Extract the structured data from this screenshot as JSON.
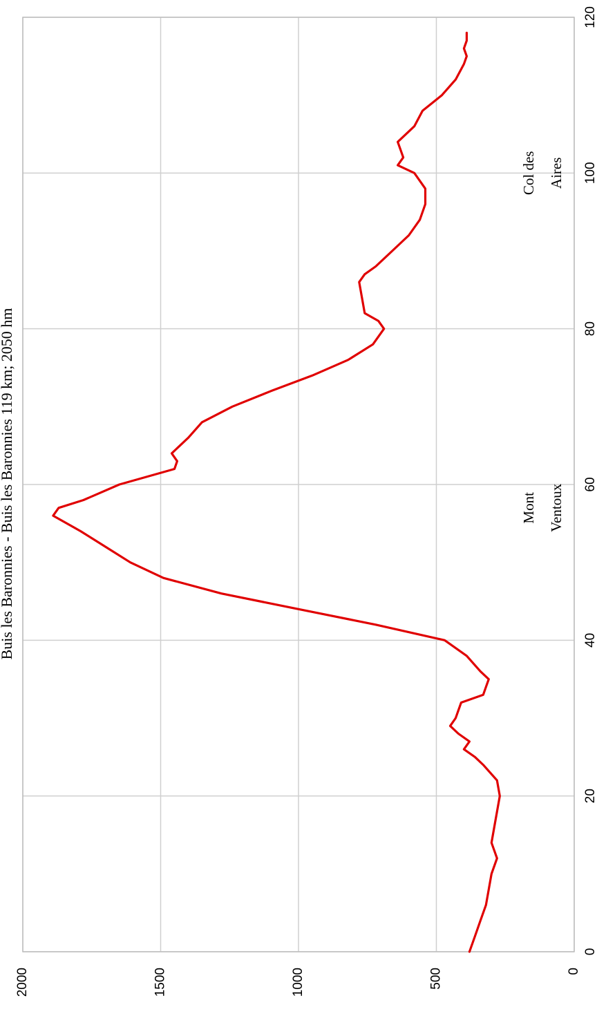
{
  "chart_data": {
    "type": "line",
    "title": "Buis les Baronnies - Buis les Baronnies 119 km; 2050 hm",
    "xlabel": "",
    "ylabel": "",
    "xlim": [
      0,
      120
    ],
    "ylim": [
      0,
      2000
    ],
    "xticks": [
      "0",
      "20",
      "40",
      "60",
      "80",
      "100",
      "120"
    ],
    "yticks": [
      "0",
      "500",
      "1000",
      "1500",
      "2000"
    ],
    "grid": true,
    "rotated": "90deg-ccw",
    "line_color": "#e00000",
    "annotations": [
      {
        "lines": [
          "Mont",
          "Ventoux"
        ],
        "x": 57,
        "y": 110
      },
      {
        "lines": [
          "Col des",
          "Aires"
        ],
        "x": 100,
        "y": 110
      }
    ],
    "series": [
      {
        "x": [
          0,
          2,
          4,
          6,
          8,
          10,
          12,
          13,
          14,
          16,
          18,
          20,
          22,
          24,
          25,
          26,
          27,
          28,
          29,
          30,
          31,
          32,
          33,
          34,
          35,
          36,
          38,
          40,
          42,
          44,
          46,
          48,
          50,
          52,
          54,
          56,
          57,
          58,
          60,
          62,
          63,
          64,
          65,
          66,
          68,
          70,
          72,
          74,
          76,
          78,
          80,
          81,
          82,
          84,
          86,
          87,
          88,
          90,
          92,
          94,
          96,
          98,
          100,
          101,
          102,
          103,
          104,
          106,
          108,
          110,
          112,
          114,
          115,
          116,
          117,
          118
        ],
        "y": [
          380,
          360,
          340,
          320,
          310,
          300,
          280,
          290,
          300,
          290,
          280,
          270,
          280,
          330,
          360,
          400,
          380,
          420,
          450,
          430,
          420,
          410,
          330,
          320,
          310,
          340,
          390,
          470,
          720,
          1000,
          1280,
          1490,
          1610,
          1700,
          1790,
          1890,
          1870,
          1780,
          1650,
          1450,
          1440,
          1460,
          1430,
          1400,
          1350,
          1240,
          1100,
          950,
          820,
          730,
          690,
          710,
          760,
          770,
          780,
          760,
          720,
          660,
          600,
          560,
          540,
          540,
          580,
          640,
          620,
          630,
          640,
          580,
          550,
          480,
          430,
          400,
          390,
          400,
          390,
          390
        ]
      }
    ]
  }
}
